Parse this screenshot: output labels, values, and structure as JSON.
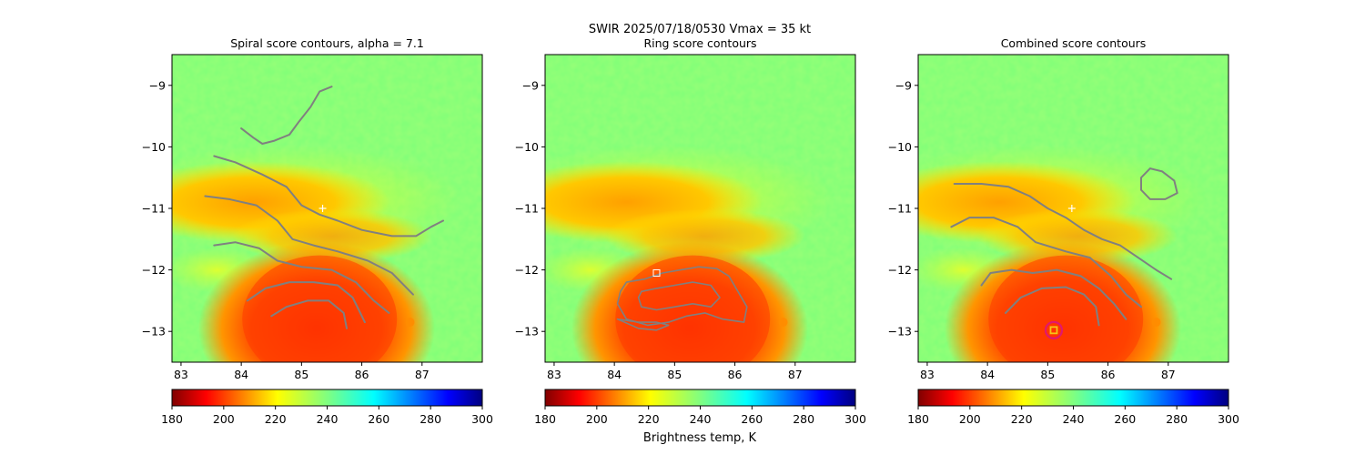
{
  "figure": {
    "suptitle_line1": "SWIR  2025/07/18/0530    Vmax = 35 kt",
    "colorbar_label": "Brightness temp, K"
  },
  "chart_data": [
    {
      "type": "heatmap",
      "title": "Spiral score contours, alpha =  7.1",
      "xlim": [
        82.85,
        88.0
      ],
      "ylim": [
        -13.5,
        -8.5
      ],
      "xticks": [
        "83",
        "84",
        "85",
        "86",
        "87"
      ],
      "yticks": [
        "−9",
        "−10",
        "−11",
        "−12",
        "−13"
      ],
      "colormap": "jet_r",
      "color_range": [
        180,
        300
      ],
      "colorbar_ticks": [
        "180",
        "200",
        "220",
        "240",
        "260",
        "280",
        "300"
      ],
      "center_marker": {
        "symbol": "+",
        "lon": 85.35,
        "lat": -11.0
      },
      "contour_color": "#808080",
      "contours": [
        [
          [
            84.0,
            -9.7
          ],
          [
            84.2,
            -9.85
          ],
          [
            84.35,
            -9.95
          ],
          [
            84.55,
            -9.9
          ],
          [
            84.8,
            -9.8
          ],
          [
            84.95,
            -9.6
          ],
          [
            85.15,
            -9.35
          ],
          [
            85.3,
            -9.1
          ],
          [
            85.5,
            -9.02
          ]
        ],
        [
          [
            83.55,
            -10.15
          ],
          [
            83.9,
            -10.25
          ],
          [
            84.35,
            -10.45
          ],
          [
            84.75,
            -10.65
          ],
          [
            85.0,
            -10.95
          ],
          [
            85.3,
            -11.1
          ],
          [
            85.6,
            -11.2
          ],
          [
            86.0,
            -11.35
          ],
          [
            86.5,
            -11.45
          ],
          [
            86.9,
            -11.45
          ],
          [
            87.15,
            -11.3
          ],
          [
            87.35,
            -11.2
          ]
        ],
        [
          [
            83.4,
            -10.8
          ],
          [
            83.8,
            -10.85
          ],
          [
            84.25,
            -10.95
          ],
          [
            84.6,
            -11.2
          ],
          [
            84.85,
            -11.5
          ],
          [
            85.2,
            -11.6
          ],
          [
            85.6,
            -11.7
          ],
          [
            86.1,
            -11.85
          ],
          [
            86.5,
            -12.05
          ],
          [
            86.85,
            -12.4
          ]
        ],
        [
          [
            83.55,
            -11.6
          ],
          [
            83.9,
            -11.55
          ],
          [
            84.3,
            -11.65
          ],
          [
            84.6,
            -11.85
          ],
          [
            85.0,
            -11.95
          ],
          [
            85.5,
            -12.0
          ],
          [
            85.9,
            -12.2
          ],
          [
            86.2,
            -12.5
          ],
          [
            86.45,
            -12.7
          ]
        ],
        [
          [
            84.1,
            -12.5
          ],
          [
            84.4,
            -12.3
          ],
          [
            84.8,
            -12.2
          ],
          [
            85.2,
            -12.2
          ],
          [
            85.6,
            -12.25
          ],
          [
            85.85,
            -12.45
          ],
          [
            86.05,
            -12.85
          ]
        ],
        [
          [
            84.5,
            -12.75
          ],
          [
            84.75,
            -12.6
          ],
          [
            85.1,
            -12.5
          ],
          [
            85.45,
            -12.5
          ],
          [
            85.7,
            -12.7
          ],
          [
            85.75,
            -12.95
          ]
        ]
      ]
    },
    {
      "type": "heatmap",
      "title": "Ring score contours",
      "xlim": [
        82.85,
        88.0
      ],
      "ylim": [
        -13.5,
        -8.5
      ],
      "xticks": [
        "83",
        "84",
        "85",
        "86",
        "87"
      ],
      "yticks": [
        "−9",
        "−10",
        "−11",
        "−12",
        "−13"
      ],
      "colormap": "jet_r",
      "color_range": [
        180,
        300
      ],
      "colorbar_ticks": [
        "180",
        "200",
        "220",
        "240",
        "260",
        "280",
        "300"
      ],
      "square_marker": {
        "lon": 84.7,
        "lat": -12.05
      },
      "contour_color": "#808080",
      "contours": [
        [
          [
            84.2,
            -12.2
          ],
          [
            84.5,
            -12.15
          ],
          [
            84.8,
            -12.05
          ],
          [
            85.1,
            -12.0
          ],
          [
            85.4,
            -11.95
          ],
          [
            85.7,
            -11.98
          ],
          [
            85.9,
            -12.1
          ],
          [
            86.05,
            -12.35
          ],
          [
            86.2,
            -12.6
          ],
          [
            86.15,
            -12.85
          ],
          [
            85.8,
            -12.8
          ],
          [
            85.5,
            -12.7
          ],
          [
            85.2,
            -12.75
          ],
          [
            84.9,
            -12.85
          ],
          [
            84.55,
            -12.9
          ],
          [
            84.2,
            -12.8
          ],
          [
            84.05,
            -12.55
          ],
          [
            84.1,
            -12.35
          ],
          [
            84.2,
            -12.2
          ]
        ],
        [
          [
            84.45,
            -12.35
          ],
          [
            84.7,
            -12.3
          ],
          [
            85.0,
            -12.25
          ],
          [
            85.3,
            -12.2
          ],
          [
            85.6,
            -12.25
          ],
          [
            85.75,
            -12.45
          ],
          [
            85.6,
            -12.6
          ],
          [
            85.3,
            -12.55
          ],
          [
            85.0,
            -12.6
          ],
          [
            84.7,
            -12.65
          ],
          [
            84.45,
            -12.6
          ],
          [
            84.4,
            -12.45
          ],
          [
            84.45,
            -12.35
          ]
        ],
        [
          [
            84.05,
            -12.8
          ],
          [
            84.4,
            -12.95
          ],
          [
            84.7,
            -12.98
          ],
          [
            84.9,
            -12.9
          ],
          [
            84.7,
            -12.85
          ],
          [
            84.4,
            -12.85
          ],
          [
            84.05,
            -12.8
          ]
        ]
      ]
    },
    {
      "type": "heatmap",
      "title": "Combined score contours",
      "xlim": [
        82.85,
        88.0
      ],
      "ylim": [
        -13.5,
        -8.5
      ],
      "xticks": [
        "83",
        "84",
        "85",
        "86",
        "87"
      ],
      "yticks": [
        "−9",
        "−10",
        "−11",
        "−12",
        "−13"
      ],
      "colormap": "jet_r",
      "color_range": [
        180,
        300
      ],
      "colorbar_ticks": [
        "180",
        "200",
        "220",
        "240",
        "260",
        "280",
        "300"
      ],
      "center_marker": {
        "symbol": "+",
        "lon": 85.4,
        "lat": -11.0
      },
      "circle_marker": {
        "lon": 85.1,
        "lat": -12.98,
        "color": "#e0186e"
      },
      "square_marker": {
        "lon": 85.1,
        "lat": -12.98,
        "color": "#f5c518"
      },
      "contour_color": "#808080",
      "contours": [
        [
          [
            86.7,
            -10.35
          ],
          [
            86.9,
            -10.4
          ],
          [
            87.1,
            -10.55
          ],
          [
            87.15,
            -10.75
          ],
          [
            86.95,
            -10.85
          ],
          [
            86.7,
            -10.85
          ],
          [
            86.55,
            -10.7
          ],
          [
            86.55,
            -10.5
          ],
          [
            86.7,
            -10.35
          ]
        ],
        [
          [
            83.45,
            -10.6
          ],
          [
            83.9,
            -10.6
          ],
          [
            84.35,
            -10.65
          ],
          [
            84.7,
            -10.8
          ],
          [
            85.0,
            -11.0
          ],
          [
            85.3,
            -11.15
          ],
          [
            85.6,
            -11.35
          ],
          [
            85.9,
            -11.5
          ],
          [
            86.2,
            -11.6
          ],
          [
            86.5,
            -11.8
          ],
          [
            86.8,
            -12.0
          ],
          [
            87.05,
            -12.15
          ]
        ],
        [
          [
            83.4,
            -11.3
          ],
          [
            83.7,
            -11.15
          ],
          [
            84.1,
            -11.15
          ],
          [
            84.5,
            -11.3
          ],
          [
            84.8,
            -11.55
          ],
          [
            85.3,
            -11.7
          ],
          [
            85.7,
            -11.8
          ],
          [
            86.05,
            -12.1
          ],
          [
            86.3,
            -12.4
          ],
          [
            86.55,
            -12.6
          ]
        ],
        [
          [
            83.9,
            -12.25
          ],
          [
            84.05,
            -12.05
          ],
          [
            84.4,
            -12.0
          ],
          [
            84.75,
            -12.05
          ],
          [
            85.15,
            -12.0
          ],
          [
            85.55,
            -12.1
          ],
          [
            85.85,
            -12.3
          ],
          [
            86.1,
            -12.55
          ],
          [
            86.3,
            -12.8
          ]
        ],
        [
          [
            84.3,
            -12.7
          ],
          [
            84.55,
            -12.45
          ],
          [
            84.9,
            -12.3
          ],
          [
            85.3,
            -12.28
          ],
          [
            85.6,
            -12.4
          ],
          [
            85.8,
            -12.6
          ],
          [
            85.85,
            -12.9
          ]
        ]
      ]
    }
  ]
}
